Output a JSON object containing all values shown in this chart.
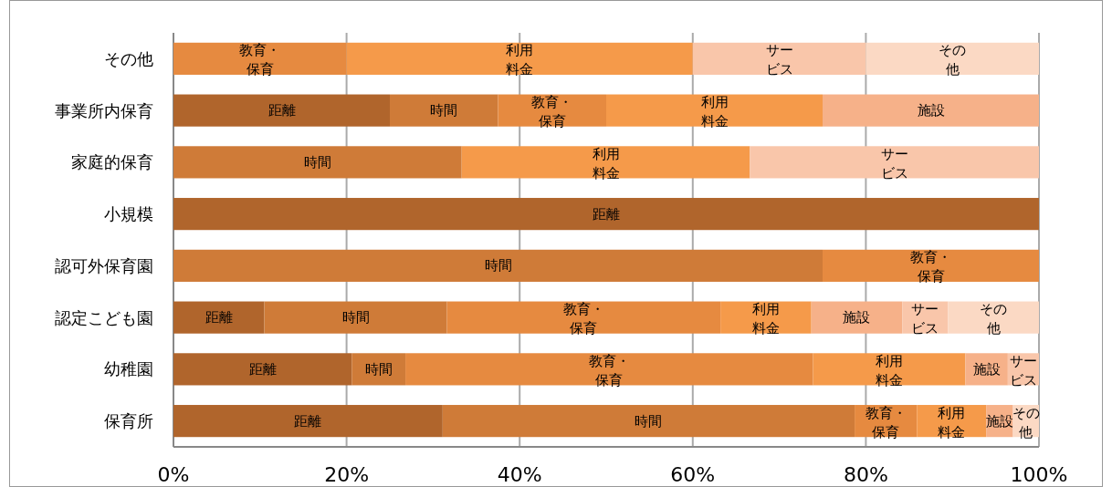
{
  "chart_data": {
    "type": "bar",
    "orientation": "horizontal",
    "stacked": true,
    "categories": [
      "その他",
      "事業所内保育",
      "家庭的保育",
      "小規模",
      "認可外保育園",
      "認定こども園",
      "幼稚園",
      "保育所"
    ],
    "series": [
      {
        "name": "距離",
        "color": "#b0652c",
        "values": [
          0,
          25,
          0,
          100,
          0,
          10.5,
          20.6,
          31.1
        ]
      },
      {
        "name": "時間",
        "color": "#cf7b38",
        "values": [
          0,
          12.5,
          33.3,
          0,
          75,
          21.1,
          6.2,
          47.6
        ]
      },
      {
        "name": "教育・保育",
        "color": "#e68a40",
        "values": [
          20,
          12.5,
          0,
          0,
          25,
          31.6,
          47.1,
          7.2
        ]
      },
      {
        "name": "利用料金",
        "color": "#f59a4a",
        "values": [
          40,
          25,
          33.3,
          0,
          0,
          10.5,
          17.6,
          8.0
        ]
      },
      {
        "name": "施設",
        "color": "#f6b189",
        "values": [
          0,
          25,
          0,
          0,
          0,
          10.5,
          4.9,
          3.1
        ]
      },
      {
        "name": "サービス",
        "color": "#f9c6aa",
        "values": [
          20,
          0,
          33.4,
          0,
          0,
          5.3,
          3.6,
          0
        ]
      },
      {
        "name": "その他",
        "color": "#fbd9c4",
        "values": [
          20,
          0,
          0,
          0,
          0,
          10.5,
          0,
          3.0
        ]
      }
    ],
    "xlim": [
      0,
      100
    ],
    "xticks": [
      {
        "value": 0,
        "label": "0%"
      },
      {
        "value": 20,
        "label": "20%"
      },
      {
        "value": 40,
        "label": "40%"
      },
      {
        "value": 60,
        "label": "60%"
      },
      {
        "value": 80,
        "label": "80%"
      },
      {
        "value": 100,
        "label": "100%"
      }
    ],
    "grid": "x"
  }
}
